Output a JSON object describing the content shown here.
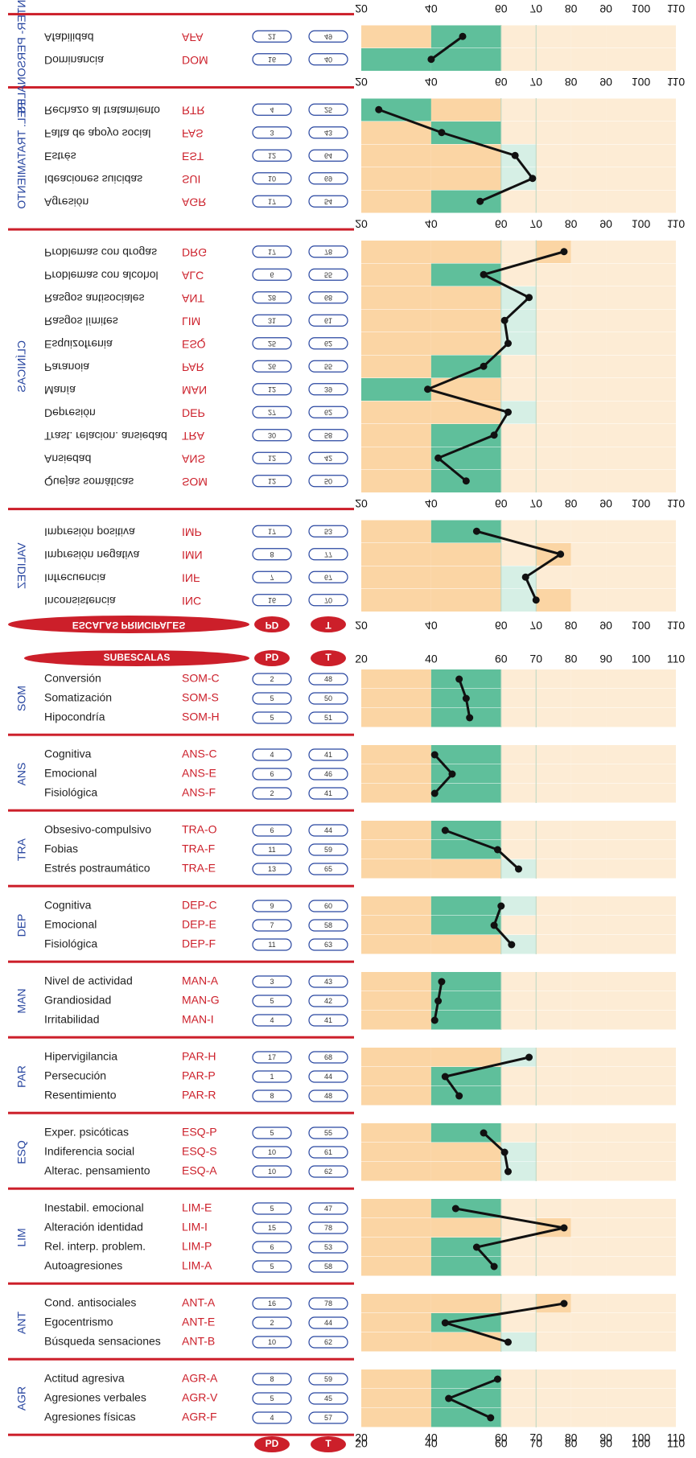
{
  "colors": {
    "green": "#5fbf9b",
    "light_green": "#d6efe5",
    "orange": "#fbd5a4",
    "light_orange": "#fdecd5",
    "red": "#cc1f2a",
    "blue": "#2846a0",
    "line": "#111111"
  },
  "header": {
    "pd_label": "PD",
    "t_label": "T",
    "principal_title": "ESCALAS PRINCIPALES",
    "sub_title": "SUBESCALAS"
  },
  "axis_ticks": [
    "20",
    "40",
    "60",
    "70",
    "80",
    "90",
    "100",
    "110"
  ],
  "chart_data": [
    {
      "type": "line",
      "title": "ESCALAS PRINCIPALES",
      "xlim": [
        20,
        110
      ],
      "groups": [
        {
          "label": "VALIDEZ",
          "rows": [
            {
              "name": "Inconsistencia",
              "code": "INC",
              "pd": "16",
              "t": 70
            },
            {
              "name": "Infrecuencia",
              "code": "INF",
              "pd": "7",
              "t": 67
            },
            {
              "name": "Impresión negativa",
              "code": "IMN",
              "pd": "8",
              "t": 77
            },
            {
              "name": "Impresión positiva",
              "code": "IMP",
              "pd": "17",
              "t": 53
            }
          ]
        },
        {
          "label": "CLÍNICAS",
          "rows": [
            {
              "name": "Quejas somáticas",
              "code": "SOM",
              "pd": "12",
              "t": 50
            },
            {
              "name": "Ansiedad",
              "code": "ANS",
              "pd": "12",
              "t": 42
            },
            {
              "name": "Trast. relacion. ansiedad",
              "code": "TRA",
              "pd": "30",
              "t": 58
            },
            {
              "name": "Depresión",
              "code": "DEP",
              "pd": "27",
              "t": 62
            },
            {
              "name": "Manía",
              "code": "MAN",
              "pd": "12",
              "t": 39
            },
            {
              "name": "Paranoia",
              "code": "PAR",
              "pd": "26",
              "t": 55
            },
            {
              "name": "Esquizofrenia",
              "code": "ESQ",
              "pd": "25",
              "t": 62
            },
            {
              "name": "Rasgos límites",
              "code": "LIM",
              "pd": "31",
              "t": 61
            },
            {
              "name": "Rasgos antisociales",
              "code": "ANT",
              "pd": "28",
              "t": 68
            },
            {
              "name": "Problemas con alcohol",
              "code": "ALC",
              "pd": "6",
              "t": 55
            },
            {
              "name": "Problemas con drogas",
              "code": "DRG",
              "pd": "17",
              "t": 78
            }
          ]
        },
        {
          "label": "REL. TRATAMIENTO",
          "rows": [
            {
              "name": "Agresión",
              "code": "AGR",
              "pd": "17",
              "t": 54
            },
            {
              "name": "Ideaciones suicidas",
              "code": "SUI",
              "pd": "10",
              "t": 69
            },
            {
              "name": "Estrés",
              "code": "EST",
              "pd": "12",
              "t": 64
            },
            {
              "name": "Falta de apoyo social",
              "code": "FAS",
              "pd": "3",
              "t": 43
            },
            {
              "name": "Rechazo al tratamiento",
              "code": "RTR",
              "pd": "4",
              "t": 25
            }
          ]
        },
        {
          "label": "R. INTER- PERSONALES",
          "rows": [
            {
              "name": "Dominancia",
              "code": "DOM",
              "pd": "16",
              "t": 40
            },
            {
              "name": "Afabilidad",
              "code": "AFA",
              "pd": "21",
              "t": 49
            }
          ]
        }
      ]
    },
    {
      "type": "line",
      "title": "SUBESCALAS",
      "xlim": [
        20,
        110
      ],
      "groups": [
        {
          "label": "SOM",
          "rows": [
            {
              "name": "Conversión",
              "code": "SOM-C",
              "pd": "2",
              "t": 48
            },
            {
              "name": "Somatización",
              "code": "SOM-S",
              "pd": "5",
              "t": 50
            },
            {
              "name": "Hipocondría",
              "code": "SOM-H",
              "pd": "5",
              "t": 51
            }
          ]
        },
        {
          "label": "ANS",
          "rows": [
            {
              "name": "Cognitiva",
              "code": "ANS-C",
              "pd": "4",
              "t": 41
            },
            {
              "name": "Emocional",
              "code": "ANS-E",
              "pd": "6",
              "t": 46
            },
            {
              "name": "Fisiológica",
              "code": "ANS-F",
              "pd": "2",
              "t": 41
            }
          ]
        },
        {
          "label": "TRA",
          "rows": [
            {
              "name": "Obsesivo-compulsivo",
              "code": "TRA-O",
              "pd": "6",
              "t": 44
            },
            {
              "name": "Fobias",
              "code": "TRA-F",
              "pd": "11",
              "t": 59
            },
            {
              "name": "Estrés postraumático",
              "code": "TRA-E",
              "pd": "13",
              "t": 65
            }
          ]
        },
        {
          "label": "DEP",
          "rows": [
            {
              "name": "Cognitiva",
              "code": "DEP-C",
              "pd": "9",
              "t": 60
            },
            {
              "name": "Emocional",
              "code": "DEP-E",
              "pd": "7",
              "t": 58
            },
            {
              "name": "Fisiológica",
              "code": "DEP-F",
              "pd": "11",
              "t": 63
            }
          ]
        },
        {
          "label": "MAN",
          "rows": [
            {
              "name": "Nivel de actividad",
              "code": "MAN-A",
              "pd": "3",
              "t": 43
            },
            {
              "name": "Grandiosidad",
              "code": "MAN-G",
              "pd": "5",
              "t": 42
            },
            {
              "name": "Irritabilidad",
              "code": "MAN-I",
              "pd": "4",
              "t": 41
            }
          ]
        },
        {
          "label": "PAR",
          "rows": [
            {
              "name": "Hipervigilancia",
              "code": "PAR-H",
              "pd": "17",
              "t": 68
            },
            {
              "name": "Persecución",
              "code": "PAR-P",
              "pd": "1",
              "t": 44
            },
            {
              "name": "Resentimiento",
              "code": "PAR-R",
              "pd": "8",
              "t": 48
            }
          ]
        },
        {
          "label": "ESQ",
          "rows": [
            {
              "name": "Exper. psicóticas",
              "code": "ESQ-P",
              "pd": "5",
              "t": 55
            },
            {
              "name": "Indiferencia social",
              "code": "ESQ-S",
              "pd": "10",
              "t": 61
            },
            {
              "name": "Alterac. pensamiento",
              "code": "ESQ-A",
              "pd": "10",
              "t": 62
            }
          ]
        },
        {
          "label": "LIM",
          "rows": [
            {
              "name": "Inestabil. emocional",
              "code": "LIM-E",
              "pd": "5",
              "t": 47
            },
            {
              "name": "Alteración identidad",
              "code": "LIM-I",
              "pd": "15",
              "t": 78
            },
            {
              "name": "Rel. interp. problem.",
              "code": "LIM-P",
              "pd": "6",
              "t": 53
            },
            {
              "name": "Autoagresiones",
              "code": "LIM-A",
              "pd": "5",
              "t": 58
            }
          ]
        },
        {
          "label": "ANT",
          "rows": [
            {
              "name": "Cond. antisociales",
              "code": "ANT-A",
              "pd": "16",
              "t": 78
            },
            {
              "name": "Egocentrismo",
              "code": "ANT-E",
              "pd": "2",
              "t": 44
            },
            {
              "name": "Búsqueda sensaciones",
              "code": "ANT-B",
              "pd": "10",
              "t": 62
            }
          ]
        },
        {
          "label": "AGR",
          "rows": [
            {
              "name": "Actitud agresiva",
              "code": "AGR-A",
              "pd": "8",
              "t": 59
            },
            {
              "name": "Agresiones verbales",
              "code": "AGR-V",
              "pd": "5",
              "t": 45
            },
            {
              "name": "Agresiones físicas",
              "code": "AGR-F",
              "pd": "4",
              "t": 57
            }
          ]
        }
      ]
    }
  ]
}
